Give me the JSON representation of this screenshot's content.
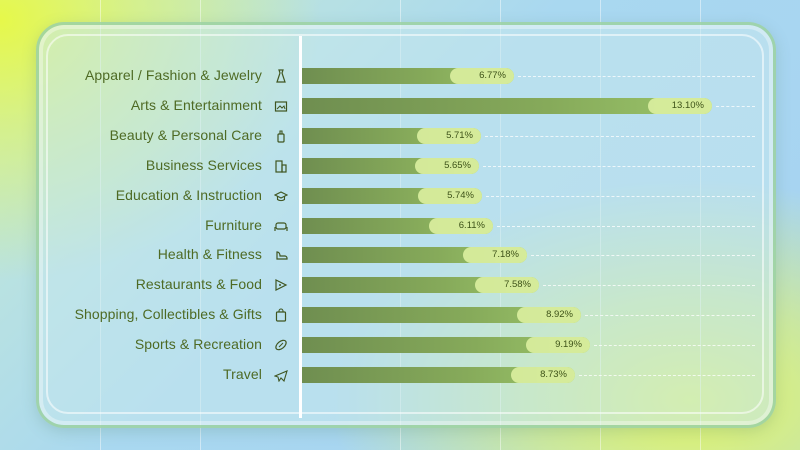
{
  "chart_data": {
    "type": "bar",
    "orientation": "horizontal",
    "title": "",
    "xlabel": "",
    "ylabel": "",
    "xlim": [
      0,
      14
    ],
    "categories": [
      "Apparel / Fashion & Jewelry",
      "Arts & Entertainment",
      "Beauty & Personal Care",
      "Business Services",
      "Education & Instruction",
      "Furniture",
      "Health & Fitness",
      "Restaurants & Food",
      "Shopping, Collectibles & Gifts",
      "Sports & Recreation",
      "Travel"
    ],
    "values": [
      6.77,
      13.1,
      5.71,
      5.65,
      5.74,
      6.11,
      7.18,
      7.58,
      8.92,
      9.19,
      8.73
    ],
    "value_labels": [
      "6.77%",
      "13.10%",
      "5.71%",
      "5.65%",
      "5.74%",
      "6.11%",
      "7.18%",
      "7.58%",
      "8.92%",
      "9.19%",
      "8.73%"
    ],
    "icons": [
      "dress-icon",
      "picture-frame-icon",
      "perfume-icon",
      "building-icon",
      "graduation-cap-icon",
      "sofa-icon",
      "dumbbell-icon",
      "pizza-slice-icon",
      "shopping-bag-icon",
      "football-icon",
      "airplane-icon"
    ]
  },
  "colors": {
    "bar_start": "#6f8e50",
    "bar_end": "#9bc56a",
    "label_text": "#4e6a24",
    "value_text": "#3d5218"
  }
}
